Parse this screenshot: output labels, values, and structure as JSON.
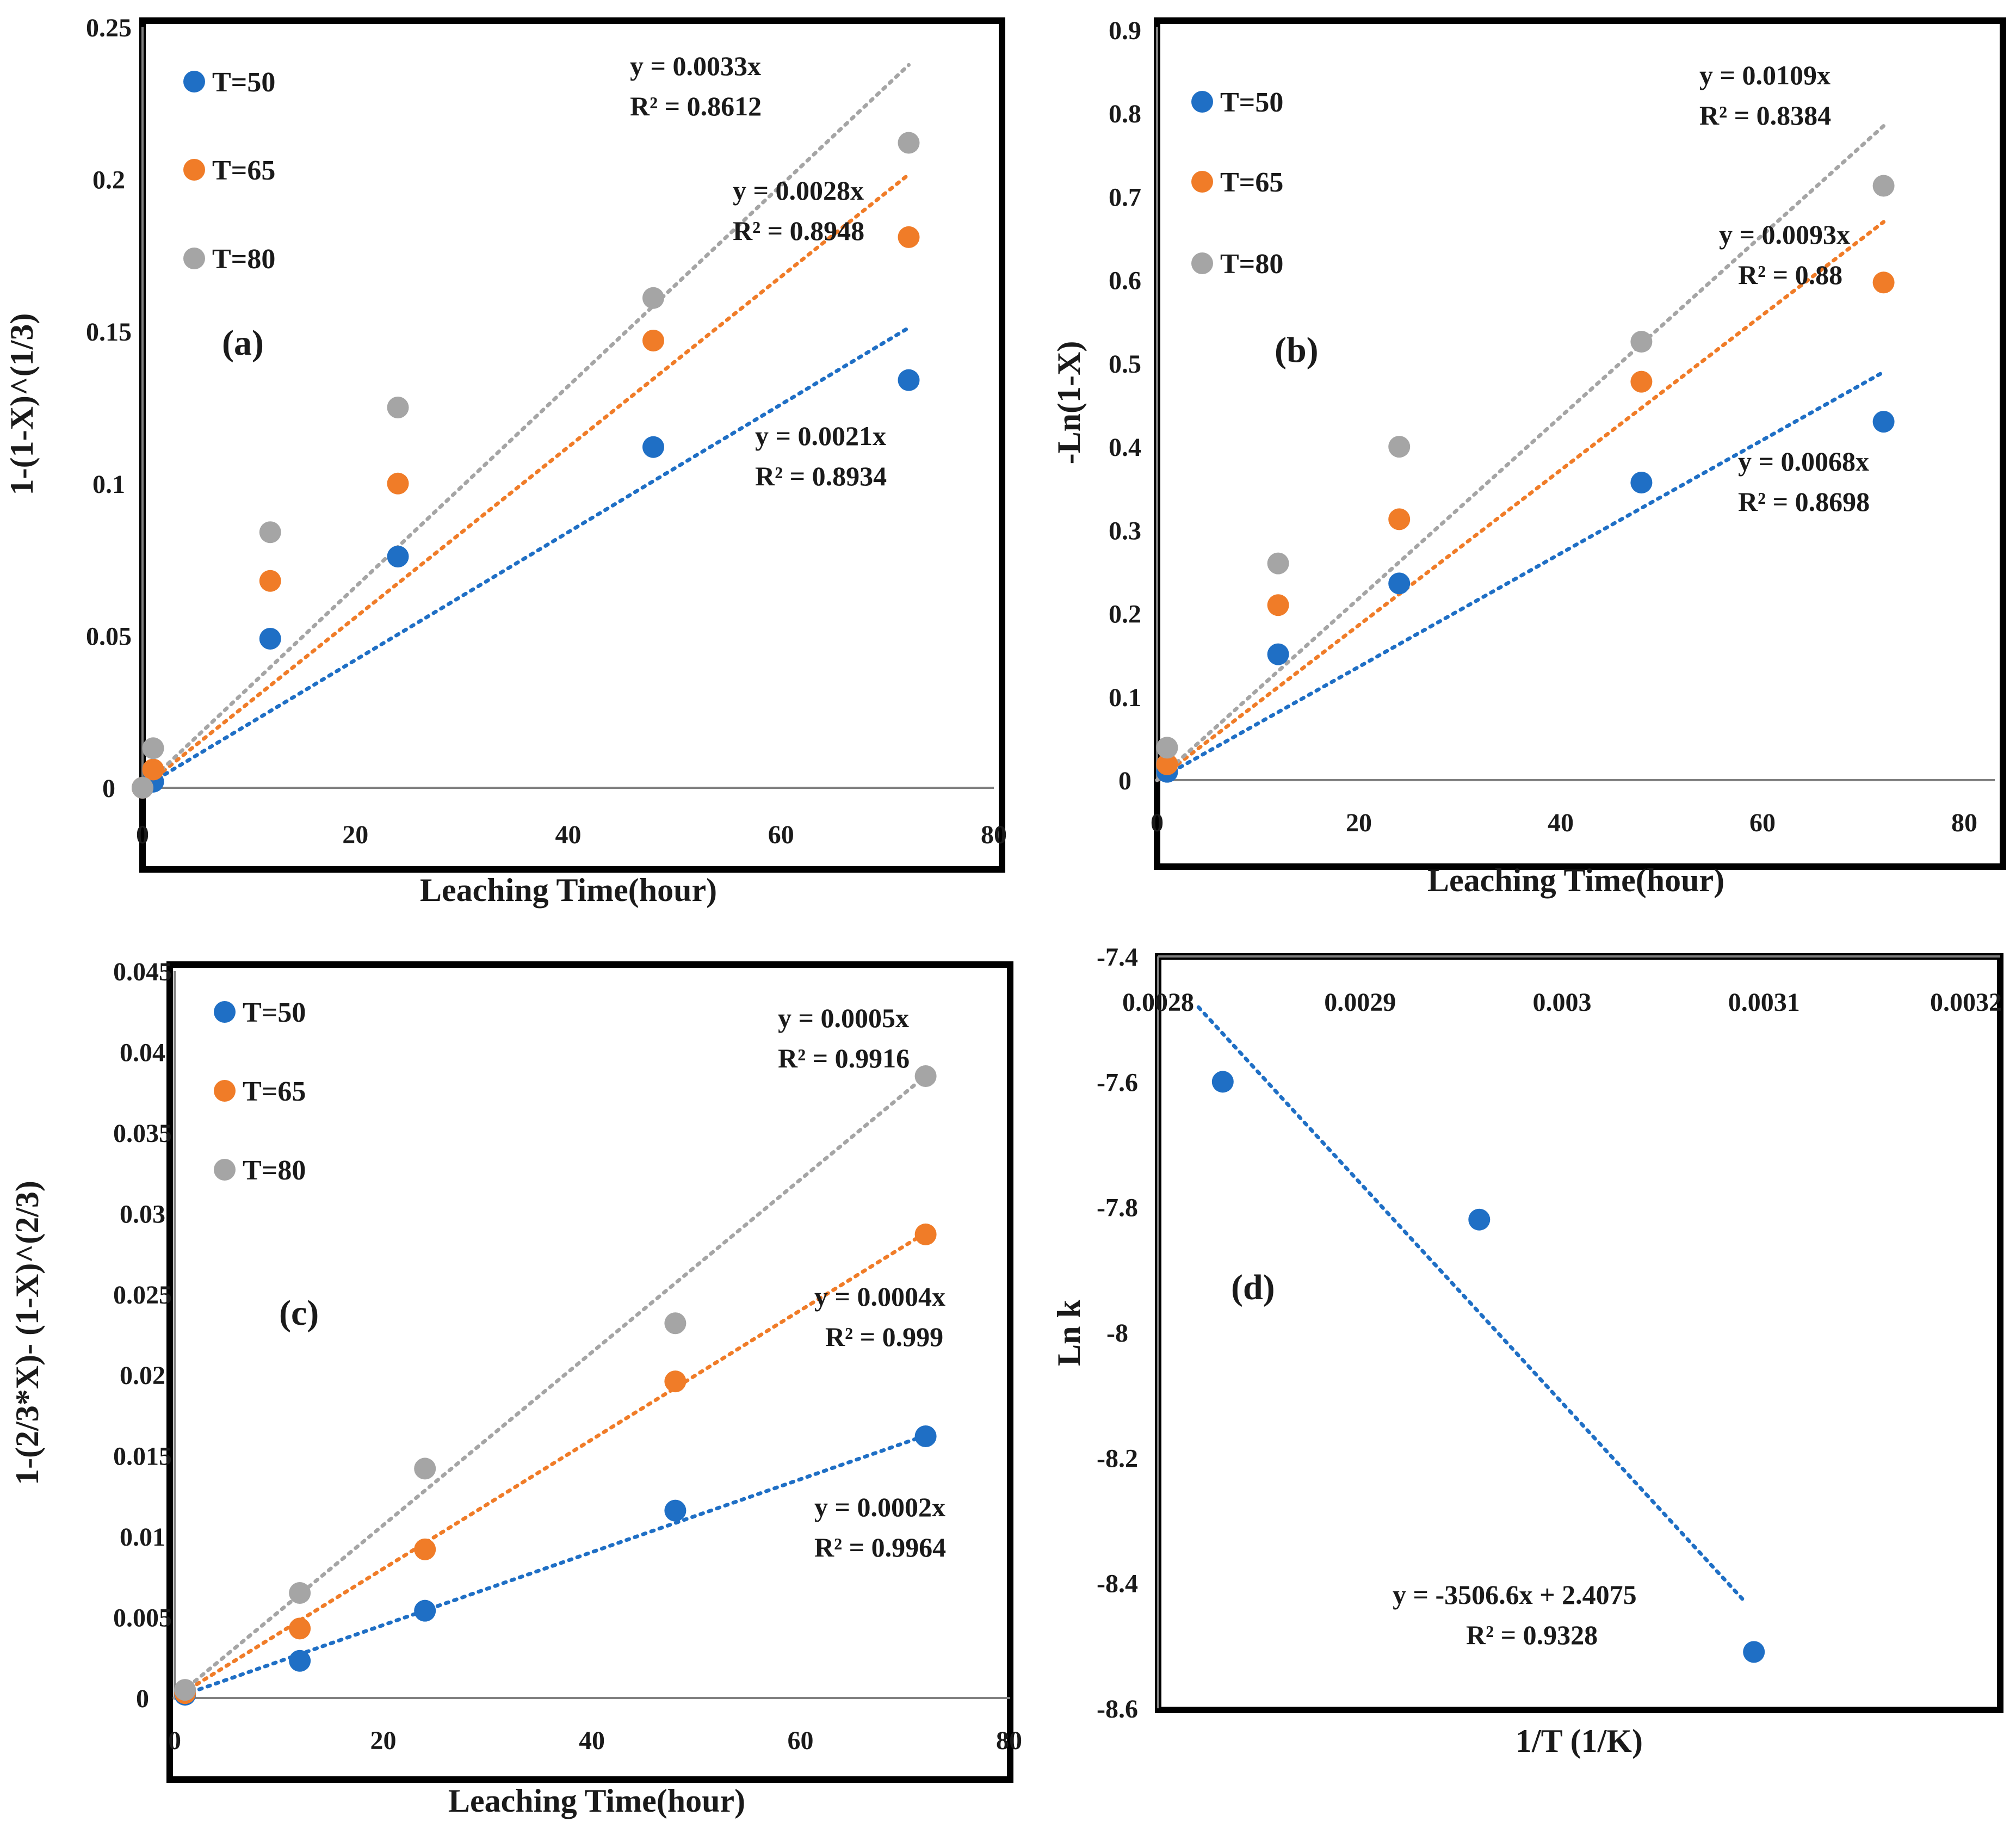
{
  "colors": {
    "T50": "#1f6fc5",
    "T65": "#f07c28",
    "T80": "#a5a5a5",
    "frame": "#000000",
    "axis": "#808080"
  },
  "chart_data": [
    {
      "id": "a",
      "type": "scatter",
      "panel_label": "(a)",
      "xlabel": "Leaching Time(hour)",
      "ylabel": "1-(1-X)^(1/3)",
      "xlim": [
        0,
        80
      ],
      "ylim": [
        0,
        0.25
      ],
      "xticks": [
        "0",
        "20",
        "40",
        "60",
        "80"
      ],
      "yticks": [
        "0",
        "0.05",
        "0.1",
        "0.15",
        "0.2",
        "0.25"
      ],
      "legend": [
        "T=50",
        "T=65",
        "T=80"
      ],
      "series": [
        {
          "name": "T=50",
          "color_key": "T50",
          "x": [
            0,
            1,
            12,
            24,
            48,
            72
          ],
          "y": [
            0,
            0.002,
            0.049,
            0.076,
            0.112,
            0.134
          ],
          "trend": {
            "slope": 0.0021,
            "x_end": 72
          },
          "equation": "y = 0.0021x",
          "r2": "R² = 0.8934"
        },
        {
          "name": "T=65",
          "color_key": "T65",
          "x": [
            0,
            1,
            12,
            24,
            48,
            72
          ],
          "y": [
            0,
            0.006,
            0.068,
            0.1,
            0.147,
            0.181
          ],
          "trend": {
            "slope": 0.0028,
            "x_end": 72
          },
          "equation": "y = 0.0028x",
          "r2": "R² = 0.8948"
        },
        {
          "name": "T=80",
          "color_key": "T80",
          "x": [
            0,
            1,
            12,
            24,
            48,
            72
          ],
          "y": [
            0,
            0.013,
            0.084,
            0.125,
            0.161,
            0.212
          ],
          "trend": {
            "slope": 0.0033,
            "x_end": 72
          },
          "equation": "y = 0.0033x",
          "r2": "R² = 0.8612"
        }
      ]
    },
    {
      "id": "b",
      "type": "scatter",
      "panel_label": "(b)",
      "xlabel": "Leaching Time(hour)",
      "ylabel": "-Ln(1-X)",
      "xlim": [
        0,
        80
      ],
      "ylim": [
        0,
        0.9
      ],
      "xticks": [
        "0",
        "20",
        "40",
        "60",
        "80"
      ],
      "yticks": [
        "0",
        "0.1",
        "0.2",
        "0.3",
        "0.4",
        "0.5",
        "0.6",
        "0.7",
        "0.8",
        "0.9"
      ],
      "legend": [
        "T=50",
        "T=65",
        "T=80"
      ],
      "series": [
        {
          "name": "T=50",
          "color_key": "T50",
          "x": [
            1,
            12,
            24,
            48,
            72
          ],
          "y": [
            0.01,
            0.151,
            0.236,
            0.357,
            0.43
          ],
          "trend": {
            "slope": 0.0068,
            "x_end": 72
          },
          "equation": "y = 0.0068x",
          "r2": "R² = 0.8698"
        },
        {
          "name": "T=65",
          "color_key": "T65",
          "x": [
            1,
            12,
            24,
            48,
            72
          ],
          "y": [
            0.019,
            0.21,
            0.313,
            0.478,
            0.597
          ],
          "trend": {
            "slope": 0.0093,
            "x_end": 72
          },
          "equation": "y = 0.0093x",
          "r2": "R² = 0.88"
        },
        {
          "name": "T=80",
          "color_key": "T80",
          "x": [
            1,
            12,
            24,
            48,
            72
          ],
          "y": [
            0.039,
            0.26,
            0.4,
            0.526,
            0.713
          ],
          "trend": {
            "slope": 0.0109,
            "x_end": 72
          },
          "equation": "y = 0.0109x",
          "r2": "R² = 0.8384"
        }
      ]
    },
    {
      "id": "c",
      "type": "scatter",
      "panel_label": "(c)",
      "xlabel": "Leaching Time(hour)",
      "ylabel": "1-(2/3*X)- (1-X)^(2/3)",
      "xlim": [
        0,
        80
      ],
      "ylim": [
        0,
        0.045
      ],
      "xticks": [
        "0",
        "20",
        "40",
        "60",
        "80"
      ],
      "yticks": [
        "0",
        "0.005",
        "0.01",
        "0.015",
        "0.02",
        "0.025",
        "0.03",
        "0.035",
        "0.04",
        "0.045"
      ],
      "legend": [
        "T=50",
        "T=65",
        "T=80"
      ],
      "series": [
        {
          "name": "T=50",
          "color_key": "T50",
          "x": [
            1,
            12,
            24,
            48,
            72
          ],
          "y": [
            0.0002,
            0.0023,
            0.0054,
            0.0116,
            0.0162
          ],
          "trend": {
            "slope": 0.0002257,
            "x_end": 72
          },
          "equation": "y = 0.0002x",
          "r2": "R² = 0.9964"
        },
        {
          "name": "T=65",
          "color_key": "T65",
          "x": [
            1,
            12,
            24,
            48,
            72
          ],
          "y": [
            0.0003,
            0.0043,
            0.0092,
            0.0196,
            0.0287
          ],
          "trend": {
            "slope": 0.0004,
            "x_end": 72
          },
          "equation": "y = 0.0004x",
          "r2": "R² = 0.999"
        },
        {
          "name": "T=80",
          "color_key": "T80",
          "x": [
            1,
            12,
            24,
            48,
            72
          ],
          "y": [
            0.0005,
            0.0065,
            0.0142,
            0.0232,
            0.0385
          ],
          "trend": {
            "slope": 0.000535,
            "x_end": 72
          },
          "equation": "y = 0.0005x",
          "r2": "R² = 0.9916"
        }
      ]
    },
    {
      "id": "d",
      "type": "scatter",
      "panel_label": "(d)",
      "xlabel": "1/T (1/K)",
      "ylabel": "Ln k",
      "xlim": [
        0.0028,
        0.0032
      ],
      "ylim": [
        -8.6,
        -7.4
      ],
      "xticks": [
        "0.0028",
        "0.0029",
        "0.003",
        "0.0031",
        "0.0032"
      ],
      "yticks": [
        "-8.6",
        "-8.4",
        "-8.2",
        "-8",
        "-7.8",
        "-7.6",
        "-7.4"
      ],
      "series": [
        {
          "name": "Ln k",
          "color_key": "T50",
          "x": [
            0.002832,
            0.002959,
            0.003095
          ],
          "y": [
            -7.6,
            -7.82,
            -8.51
          ],
          "trend": {
            "slope": -3506.6,
            "intercept": 2.4075,
            "x_start": 0.00282,
            "x_end": 0.00309
          },
          "equation": "y = -3506.6x + 2.4075",
          "r2": "R² = 0.9328"
        }
      ]
    }
  ]
}
